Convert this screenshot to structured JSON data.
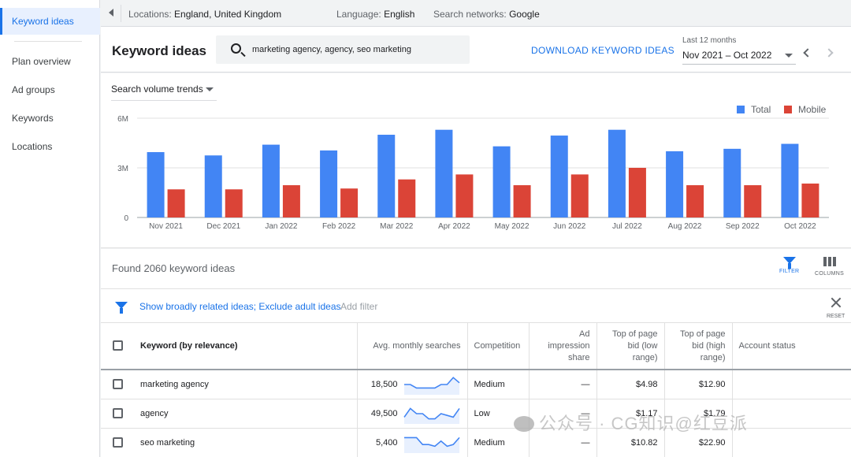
{
  "sidebar": {
    "active": "Keyword ideas",
    "items": [
      "Plan overview",
      "Ad groups",
      "Keywords",
      "Locations"
    ]
  },
  "topbar": {
    "location_label": "Locations:",
    "location_value": "England, United Kingdom",
    "language_label": "Language:",
    "language_value": "English",
    "networks_label": "Search networks:",
    "networks_value": "Google"
  },
  "header": {
    "title": "Keyword ideas",
    "search_value": "marketing agency, agency, seo marketing",
    "download_label": "DOWNLOAD KEYWORD IDEAS",
    "range_label": "Last 12 months",
    "range_value": "Nov 2021 – Oct 2022"
  },
  "trend_select": "Search volume trends",
  "colors": {
    "total": "#4285f4",
    "mobile": "#db4437",
    "accent": "#1a73e8"
  },
  "chart_data": {
    "type": "bar",
    "categories": [
      "Nov 2021",
      "Dec 2021",
      "Jan 2022",
      "Feb 2022",
      "Mar 2022",
      "Apr 2022",
      "May 2022",
      "Jun 2022",
      "Jul 2022",
      "Aug 2022",
      "Sep 2022",
      "Oct 2022"
    ],
    "series": [
      {
        "name": "Total",
        "values": [
          3950000,
          3750000,
          4400000,
          4050000,
          5000000,
          5300000,
          4300000,
          4950000,
          5300000,
          4000000,
          4150000,
          4450000
        ]
      },
      {
        "name": "Mobile",
        "values": [
          1700000,
          1700000,
          1950000,
          1750000,
          2300000,
          2600000,
          1950000,
          2600000,
          3000000,
          1950000,
          1950000,
          2050000
        ]
      }
    ],
    "yticks": [
      "0",
      "3M",
      "6M"
    ],
    "ylim": [
      0,
      6000000
    ],
    "grid": true,
    "legend": "top-right"
  },
  "results": {
    "found": "Found 2060 keyword ideas",
    "filter_label": "FILTER",
    "columns_label": "COLUMNS",
    "filter_text": "Show broadly related ideas; Exclude adult ideas",
    "add_filter": "Add filter",
    "reset_label": "RESET",
    "headers": {
      "keyword": "Keyword (by relevance)",
      "avg": "Avg. monthly searches",
      "competition": "Competition",
      "impression": "Ad impression share",
      "bid_low": "Top of page bid (low range)",
      "bid_high": "Top of page bid (high range)",
      "status": "Account status"
    },
    "rows": [
      {
        "keyword": "marketing agency",
        "avg": "18,500",
        "competition": "Medium",
        "impression": "—",
        "bid_low": "$4.98",
        "bid_high": "$12.90",
        "trend": [
          0.5,
          0.5,
          0.3,
          0.3,
          0.3,
          0.3,
          0.5,
          0.5,
          0.9,
          0.6
        ]
      },
      {
        "keyword": "agency",
        "avg": "49,500",
        "competition": "Low",
        "impression": "—",
        "bid_low": "$1.17",
        "bid_high": "$1.79",
        "trend": [
          0.3,
          0.8,
          0.5,
          0.5,
          0.2,
          0.2,
          0.5,
          0.4,
          0.3,
          0.8
        ]
      },
      {
        "keyword": "seo marketing",
        "avg": "5,400",
        "competition": "Medium",
        "impression": "—",
        "bid_low": "$10.82",
        "bid_high": "$22.90",
        "trend": [
          0.8,
          0.8,
          0.8,
          0.4,
          0.4,
          0.3,
          0.6,
          0.3,
          0.4,
          0.8
        ]
      }
    ]
  },
  "watermark": "公众号 · CG知识@红豆派"
}
